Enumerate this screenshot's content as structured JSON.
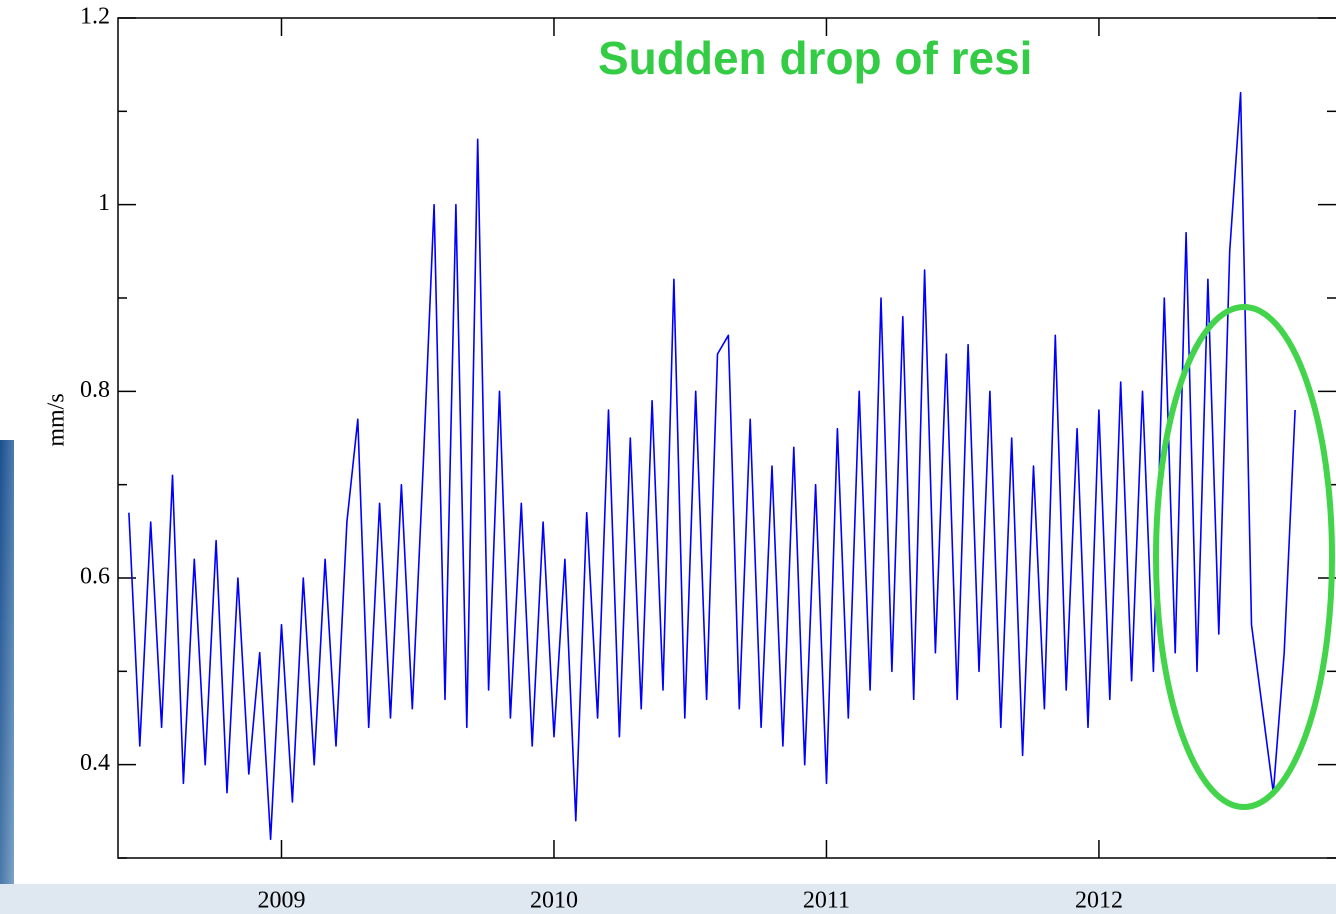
{
  "chart_data": {
    "type": "line",
    "annotation": "Sudden drop of resi",
    "ylabel": "mm/s",
    "xlim": [
      2008.4,
      2012.87
    ],
    "xticks": [
      2009,
      2010,
      2011,
      2012
    ],
    "ylim": [
      0.3,
      1.2
    ],
    "yticks": [
      0.4,
      0.6,
      0.8,
      {
        "value": 1,
        "label": "1"
      },
      1.2
    ],
    "yminor_ticks": [
      0.3,
      0.5,
      0.7,
      0.9,
      1.1
    ],
    "series": [
      {
        "color": "#0000ff",
        "x": [
          2008.44,
          2008.48,
          2008.52,
          2008.56,
          2008.6,
          2008.64,
          2008.68,
          2008.72,
          2008.76,
          2008.8,
          2008.84,
          2008.88,
          2008.92,
          2008.96,
          2009.0,
          2009.04,
          2009.08,
          2009.12,
          2009.16,
          2009.2,
          2009.24,
          2009.28,
          2009.32,
          2009.36,
          2009.4,
          2009.44,
          2009.48,
          2009.52,
          2009.56,
          2009.6,
          2009.64,
          2009.68,
          2009.72,
          2009.76,
          2009.8,
          2009.84,
          2009.88,
          2009.92,
          2009.96,
          2010.0,
          2010.04,
          2010.08,
          2010.12,
          2010.16,
          2010.2,
          2010.24,
          2010.28,
          2010.32,
          2010.36,
          2010.4,
          2010.44,
          2010.48,
          2010.52,
          2010.56,
          2010.6,
          2010.64,
          2010.68,
          2010.72,
          2010.76,
          2010.8,
          2010.84,
          2010.88,
          2010.92,
          2010.96,
          2011.0,
          2011.04,
          2011.08,
          2011.12,
          2011.16,
          2011.2,
          2011.24,
          2011.28,
          2011.32,
          2011.36,
          2011.4,
          2011.44,
          2011.48,
          2011.52,
          2011.56,
          2011.6,
          2011.64,
          2011.68,
          2011.72,
          2011.76,
          2011.8,
          2011.84,
          2011.88,
          2011.92,
          2011.96,
          2012.0,
          2012.04,
          2012.08,
          2012.12,
          2012.16,
          2012.2,
          2012.24,
          2012.28,
          2012.32,
          2012.36,
          2012.4,
          2012.44,
          2012.48,
          2012.52,
          2012.56,
          2012.6,
          2012.64,
          2012.68,
          2012.72
        ],
        "values": [
          0.67,
          0.42,
          0.66,
          0.44,
          0.71,
          0.38,
          0.62,
          0.4,
          0.64,
          0.37,
          0.6,
          0.39,
          0.52,
          0.32,
          0.55,
          0.36,
          0.6,
          0.4,
          0.62,
          0.42,
          0.66,
          0.77,
          0.44,
          0.68,
          0.45,
          0.7,
          0.46,
          0.72,
          1.0,
          0.47,
          1.0,
          0.44,
          1.07,
          0.48,
          0.8,
          0.45,
          0.68,
          0.42,
          0.66,
          0.43,
          0.62,
          0.34,
          0.67,
          0.45,
          0.78,
          0.43,
          0.75,
          0.46,
          0.79,
          0.48,
          0.92,
          0.45,
          0.8,
          0.47,
          0.84,
          0.86,
          0.46,
          0.77,
          0.44,
          0.72,
          0.42,
          0.74,
          0.4,
          0.7,
          0.38,
          0.76,
          0.45,
          0.8,
          0.48,
          0.9,
          0.5,
          0.88,
          0.47,
          0.93,
          0.52,
          0.84,
          0.47,
          0.85,
          0.5,
          0.8,
          0.44,
          0.75,
          0.41,
          0.72,
          0.46,
          0.86,
          0.48,
          0.76,
          0.44,
          0.78,
          0.47,
          0.81,
          0.49,
          0.8,
          0.5,
          0.9,
          0.52,
          0.97,
          0.5,
          0.92,
          0.54,
          0.95,
          1.12,
          0.55,
          0.46,
          0.37,
          0.52,
          0.78
        ]
      }
    ]
  }
}
